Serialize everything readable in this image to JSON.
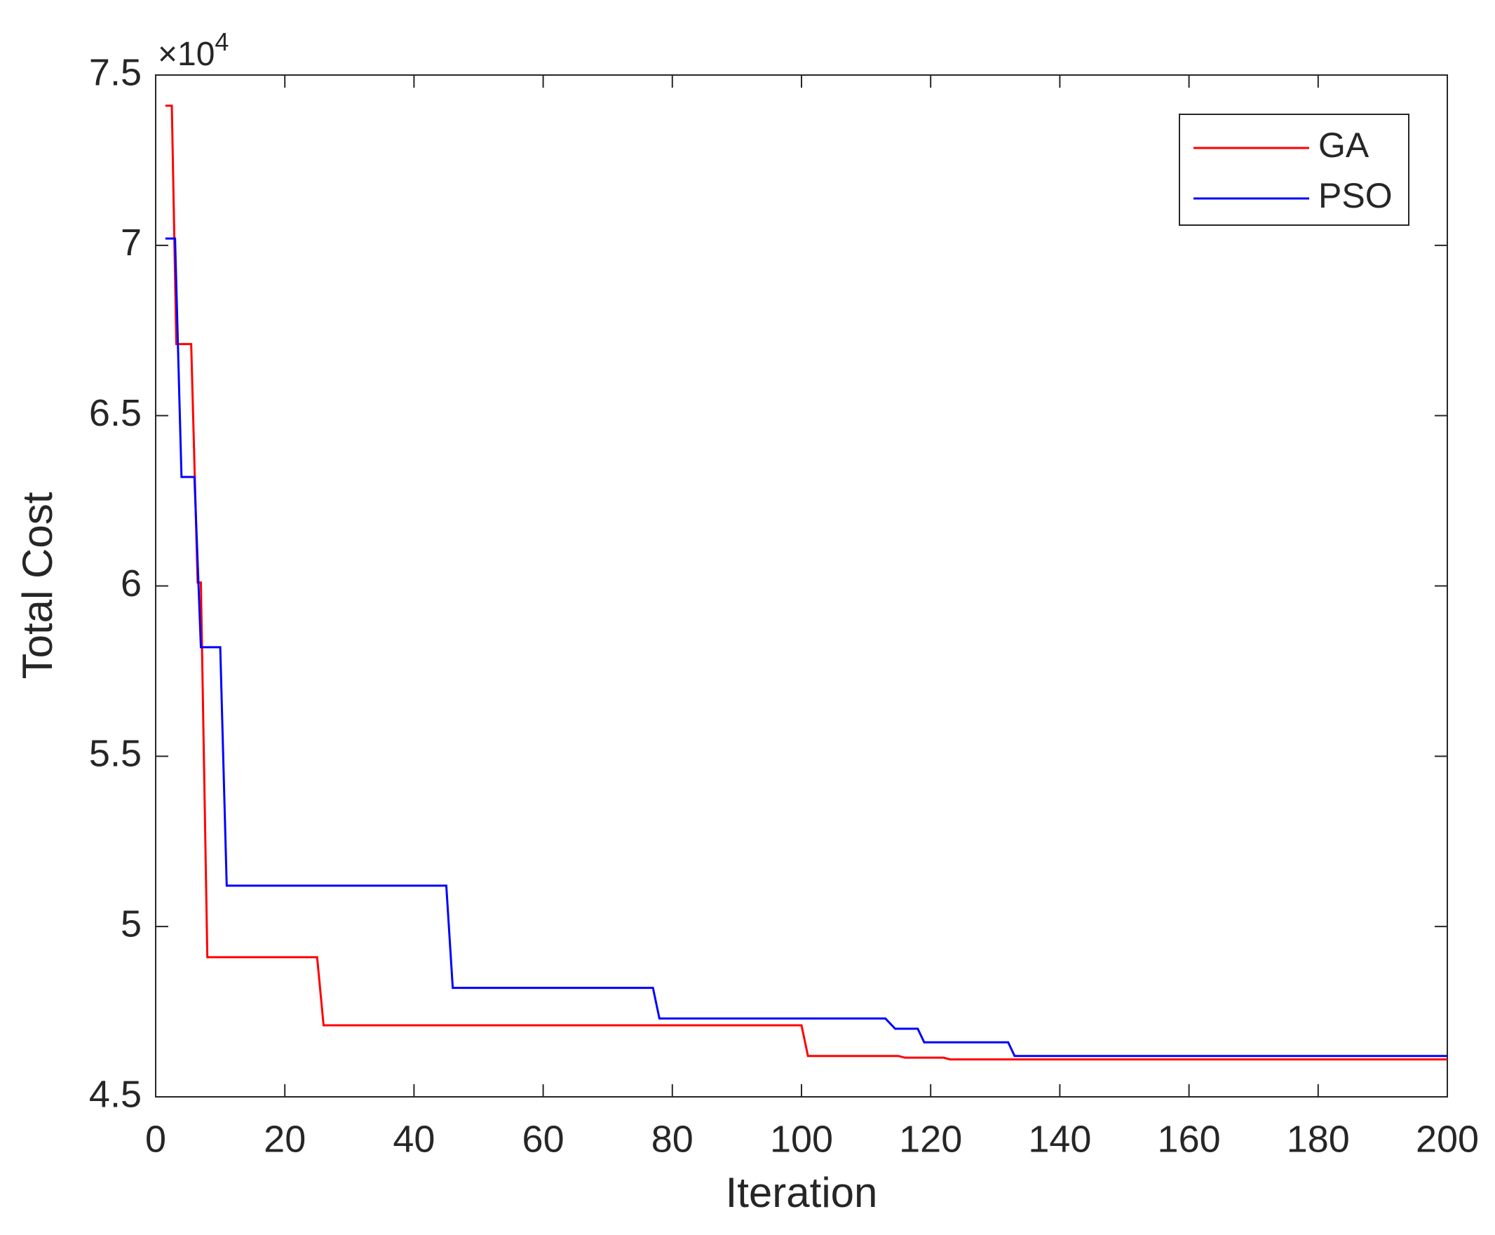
{
  "chart_data": {
    "type": "line",
    "xlabel": "Iteration",
    "ylabel": "Total Cost",
    "y_multiplier": "×10",
    "y_multiplier_exponent": "4",
    "xlim": [
      0,
      200
    ],
    "xticks": [
      0,
      20,
      40,
      60,
      80,
      100,
      120,
      140,
      160,
      180,
      200
    ],
    "ylim": [
      4.5,
      7.5
    ],
    "yticks": [
      4.5,
      5,
      5.5,
      6,
      6.5,
      7,
      7.5
    ],
    "legend": "top-right",
    "grid": false,
    "series": [
      {
        "name": "GA",
        "color": "#ff0000",
        "x": [
          1.5,
          2.5,
          3.2,
          5.5,
          6.5,
          7,
          8,
          25,
          26,
          100,
          101,
          115,
          116,
          122,
          123,
          200
        ],
        "values": [
          7.41,
          7.41,
          6.71,
          6.71,
          6.01,
          6.01,
          4.91,
          4.91,
          4.71,
          4.71,
          4.62,
          4.62,
          4.615,
          4.615,
          4.61,
          4.61
        ]
      },
      {
        "name": "PSO",
        "color": "#0000ff",
        "x": [
          1.5,
          3,
          4,
          6,
          7,
          10,
          11,
          45,
          46,
          77,
          78,
          113,
          114.5,
          118,
          119,
          132,
          133,
          200
        ],
        "values": [
          7.02,
          7.02,
          6.32,
          6.32,
          5.82,
          5.82,
          5.12,
          5.12,
          4.82,
          4.82,
          4.73,
          4.73,
          4.7,
          4.7,
          4.66,
          4.66,
          4.62,
          4.62
        ]
      }
    ]
  }
}
